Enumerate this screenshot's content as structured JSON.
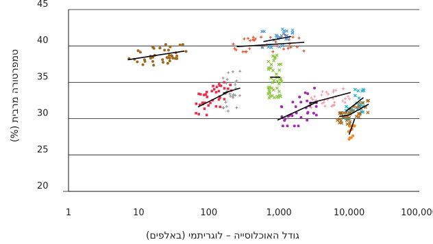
{
  "chart_data": {
    "type": "scatter",
    "title": "",
    "xlabel": "גודל האוכלוסייה – לוגריתמי (באלפים)",
    "ylabel": "טמפרטורה מרבית (%)",
    "xscale": "log",
    "xlim": [
      1,
      100000
    ],
    "ylim": [
      20,
      45
    ],
    "xticks": [
      1,
      10,
      100,
      1000,
      10000,
      100000
    ],
    "xtick_labels": [
      "1",
      "10",
      "100",
      "1,000",
      "10,000",
      "100,000"
    ],
    "yticks": [
      20,
      25,
      30,
      35,
      40,
      45
    ],
    "ytick_labels": [
      "20",
      "25",
      "30",
      "35",
      "40",
      "45"
    ],
    "grid": "y",
    "legend": "none",
    "trend_color": "#000000",
    "series": [
      {
        "color": "#a0681c",
        "marker": "dot",
        "x_range": [
          7,
          50
        ],
        "y_range": [
          37.2,
          40.2
        ],
        "count": 40,
        "trend": [
          [
            7,
            38.1
          ],
          [
            45,
            39.3
          ]
        ]
      },
      {
        "color": "#e8304a",
        "marker": "square",
        "x_range": [
          65,
          210
        ],
        "y_range": [
          30.5,
          35.0
        ],
        "count": 38,
        "trend": [
          [
            70,
            31.6
          ],
          [
            200,
            33.8
          ]
        ]
      },
      {
        "color": "#999999",
        "marker": "plus",
        "x_range": [
          150,
          290
        ],
        "y_range": [
          31.0,
          37.0
        ],
        "count": 26,
        "trend": [
          [
            160,
            33.5
          ],
          [
            280,
            34.2
          ]
        ]
      },
      {
        "color": "#e8502a",
        "marker": "plus",
        "x_range": [
          210,
          2400
        ],
        "y_range": [
          39.2,
          42.0
        ],
        "count": 34,
        "trend": [
          [
            250,
            39.9
          ],
          [
            2300,
            40.5
          ]
        ]
      },
      {
        "color": "#4ea0e0",
        "marker": "cross",
        "x_range": [
          550,
          1600
        ],
        "y_range": [
          39.8,
          43.0
        ],
        "count": 26,
        "trend": [
          [
            600,
            40.6
          ],
          [
            1500,
            41.3
          ]
        ]
      },
      {
        "color": "#8ac63c",
        "marker": "cross",
        "x_range": [
          700,
          1100
        ],
        "y_range": [
          32.5,
          39.5
        ],
        "count": 42,
        "trend": [
          [
            750,
            35.7
          ],
          [
            1050,
            35.7
          ]
        ]
      },
      {
        "color": "#a42bb0",
        "marker": "dot",
        "x_range": [
          900,
          3600
        ],
        "y_range": [
          29.0,
          34.2
        ],
        "count": 34,
        "trend": [
          [
            950,
            29.8
          ],
          [
            3500,
            32.3
          ]
        ]
      },
      {
        "color": "#f0a0a8",
        "marker": "plus",
        "x_range": [
          2600,
          11000
        ],
        "y_range": [
          31.5,
          34.2
        ],
        "count": 32,
        "trend": [
          [
            2700,
            32.1
          ],
          [
            10500,
            33.6
          ]
        ]
      },
      {
        "color": "#a0681c",
        "marker": "cross",
        "x_range": [
          6800,
          10500
        ],
        "y_range": [
          28.0,
          30.8
        ],
        "count": 28,
        "trend": [
          [
            7200,
            30.3
          ],
          [
            10000,
            30.5
          ]
        ]
      },
      {
        "color": "#f08a20",
        "marker": "dot",
        "x_range": [
          9500,
          12000
        ],
        "y_range": [
          24.8,
          29.0
        ],
        "count": 18,
        "trend": [
          [
            10000,
            27.8
          ],
          [
            12000,
            30.0
          ]
        ]
      },
      {
        "color": "#20b0d0",
        "marker": "cross",
        "x_range": [
          8500,
          16500
        ],
        "y_range": [
          30.0,
          34.8
        ],
        "count": 26,
        "trend": [
          [
            9000,
            31.0
          ],
          [
            16000,
            32.9
          ]
        ]
      },
      {
        "color": "#b06a20",
        "marker": "cross",
        "x_range": [
          9500,
          20000
        ],
        "y_range": [
          30.0,
          32.5
        ],
        "count": 20,
        "trend": [
          [
            10000,
            30.5
          ],
          [
            19000,
            32.0
          ]
        ]
      }
    ]
  }
}
